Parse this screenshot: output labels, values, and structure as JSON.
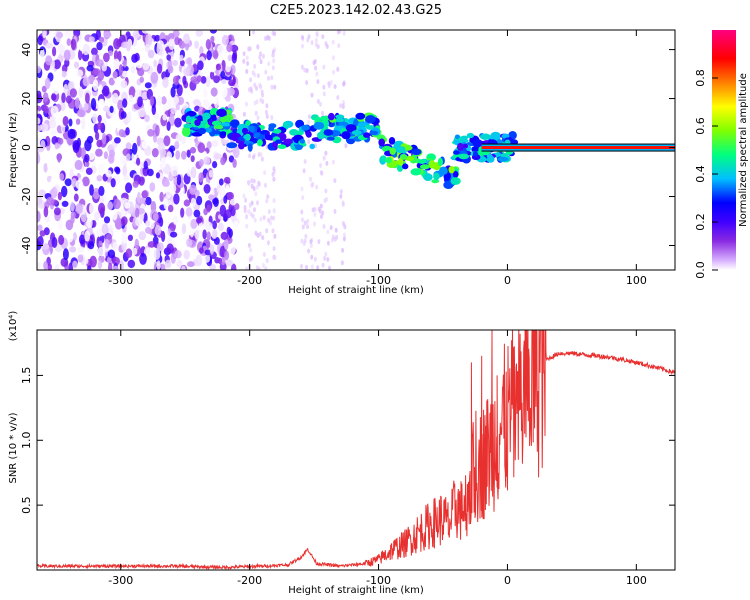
{
  "figure_title": "C2E5.2023.142.02.43.G25",
  "chart_data": [
    {
      "type": "heatmap",
      "xlabel": "Height of straight line (km)",
      "ylabel": "Frequency (Hz)",
      "xlim": [
        -365,
        130
      ],
      "ylim": [
        -50,
        48
      ],
      "xticks": [
        -300,
        -200,
        -100,
        0,
        100
      ],
      "xtick_labels": [
        "-300",
        "-200",
        "-100",
        "0",
        "100"
      ],
      "yticks": [
        -40,
        -20,
        0,
        20,
        40
      ],
      "ytick_labels": [
        "-40",
        "-20",
        "0",
        "20",
        "40"
      ],
      "colorbar": {
        "label": "Normalized spectral amplitude",
        "range": [
          0,
          1
        ],
        "ticks": [
          0.0,
          0.2,
          0.4,
          0.6,
          0.8
        ],
        "tick_labels": [
          "0.0",
          "0.2",
          "0.4",
          "0.6",
          "0.8"
        ],
        "colormap": [
          "#ffffff",
          "#d8b0ff",
          "#8a2be2",
          "#4000ff",
          "#0000ff",
          "#00bfff",
          "#00ff80",
          "#80ff00",
          "#ffff00",
          "#ff8000",
          "#ff0000",
          "#ff0080"
        ]
      },
      "features": [
        {
          "x_range": [
            -365,
            -210
          ],
          "freq_range": [
            -50,
            48
          ],
          "amplitude": 0.15
        },
        {
          "x_range": [
            -250,
            -215
          ],
          "freq_center": 10,
          "amplitude": 0.55
        },
        {
          "x_range": [
            -215,
            -150
          ],
          "freq_center": 5,
          "amplitude": 0.5
        },
        {
          "x_range": [
            -150,
            -100
          ],
          "freq_center": 8,
          "amplitude": 0.55
        },
        {
          "x_range": [
            -100,
            -40
          ],
          "freq_center": -5,
          "amplitude": 0.6
        },
        {
          "x_range": [
            -40,
            5
          ],
          "freq_center": 0,
          "amplitude": 0.5
        },
        {
          "x_range": [
            -20,
            130
          ],
          "freq_center": 0,
          "amplitude": 0.9
        }
      ]
    },
    {
      "type": "line",
      "xlabel": "Height of straight line (km)",
      "ylabel": "SNR (10 * v/v)",
      "y_multiplier": "(x10⁴)",
      "xlim": [
        -365,
        130
      ],
      "ylim": [
        0,
        1.85
      ],
      "xticks": [
        -300,
        -200,
        -100,
        0,
        100
      ],
      "xtick_labels": [
        "-300",
        "-200",
        "-100",
        "0",
        "100"
      ],
      "yticks": [
        0.5,
        1.0,
        1.5
      ],
      "ytick_labels": [
        "0.5",
        "1.0",
        "1.5"
      ],
      "color": "#e8302f",
      "series": [
        {
          "x": [
            -365,
            -340,
            -300,
            -260,
            -220,
            -190,
            -170,
            -160,
            -155,
            -148,
            -130,
            -110,
            -100,
            -90,
            -80,
            -70,
            -60,
            -50,
            -45,
            -40,
            -35,
            -30,
            -25,
            -20,
            -15,
            -10,
            -5,
            0,
            10,
            20,
            30,
            40,
            50,
            60,
            80,
            100,
            120,
            130
          ],
          "y": [
            0.03,
            0.03,
            0.03,
            0.03,
            0.02,
            0.03,
            0.04,
            0.1,
            0.16,
            0.05,
            0.03,
            0.05,
            0.08,
            0.15,
            0.2,
            0.28,
            0.35,
            0.4,
            0.35,
            0.5,
            0.45,
            0.6,
            0.75,
            0.82,
            0.9,
            1.0,
            1.1,
            1.15,
            1.3,
            1.5,
            1.62,
            1.67,
            1.67,
            1.66,
            1.64,
            1.6,
            1.55,
            1.52
          ]
        }
      ],
      "spikes": [
        {
          "x": -28,
          "y": 1.6
        },
        {
          "x": -20,
          "y": 1.65
        },
        {
          "x": -12,
          "y": 1.85
        },
        {
          "x": -8,
          "y": 1.5
        }
      ]
    }
  ]
}
